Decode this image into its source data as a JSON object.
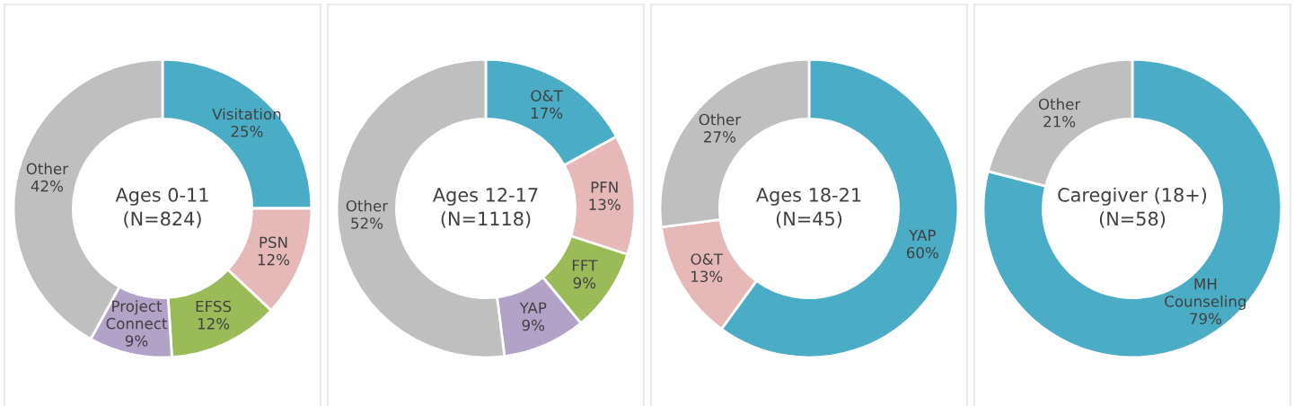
{
  "chart_data": [
    {
      "type": "donut",
      "title": "Ages 0-11\n(N=824)",
      "categories": [
        "Visitation",
        "PSN",
        "EFSS",
        "Project\nConnect",
        "Other"
      ],
      "values": [
        25,
        12,
        12,
        9,
        42
      ],
      "value_labels": [
        "25%",
        "12%",
        "12%",
        "9%",
        "42%"
      ],
      "colors": [
        "#4bacc6",
        "#e6b9b8",
        "#9bbb59",
        "#b3a2c7",
        "#bfbfbf"
      ]
    },
    {
      "type": "donut",
      "title": "Ages 12-17\n(N=1118)",
      "categories": [
        "O&T",
        "PFN",
        "FFT",
        "YAP",
        "Other"
      ],
      "values": [
        17,
        13,
        9,
        9,
        52
      ],
      "value_labels": [
        "17%",
        "13%",
        "9%",
        "9%",
        "52%"
      ],
      "colors": [
        "#4bacc6",
        "#e6b9b8",
        "#9bbb59",
        "#b3a2c7",
        "#bfbfbf"
      ]
    },
    {
      "type": "donut",
      "title": "Ages 18-21\n(N=45)",
      "categories": [
        "YAP",
        "O&T",
        "Other"
      ],
      "values": [
        60,
        13,
        27
      ],
      "value_labels": [
        "60%",
        "13%",
        "27%"
      ],
      "colors": [
        "#4bacc6",
        "#e6b9b8",
        "#bfbfbf"
      ]
    },
    {
      "type": "donut",
      "title": "Caregiver (18+)\n(N=58)",
      "categories": [
        "MH\nCounseling",
        "Other"
      ],
      "values": [
        79,
        21
      ],
      "value_labels": [
        "79%",
        "21%"
      ],
      "colors": [
        "#4bacc6",
        "#bfbfbf"
      ]
    }
  ]
}
